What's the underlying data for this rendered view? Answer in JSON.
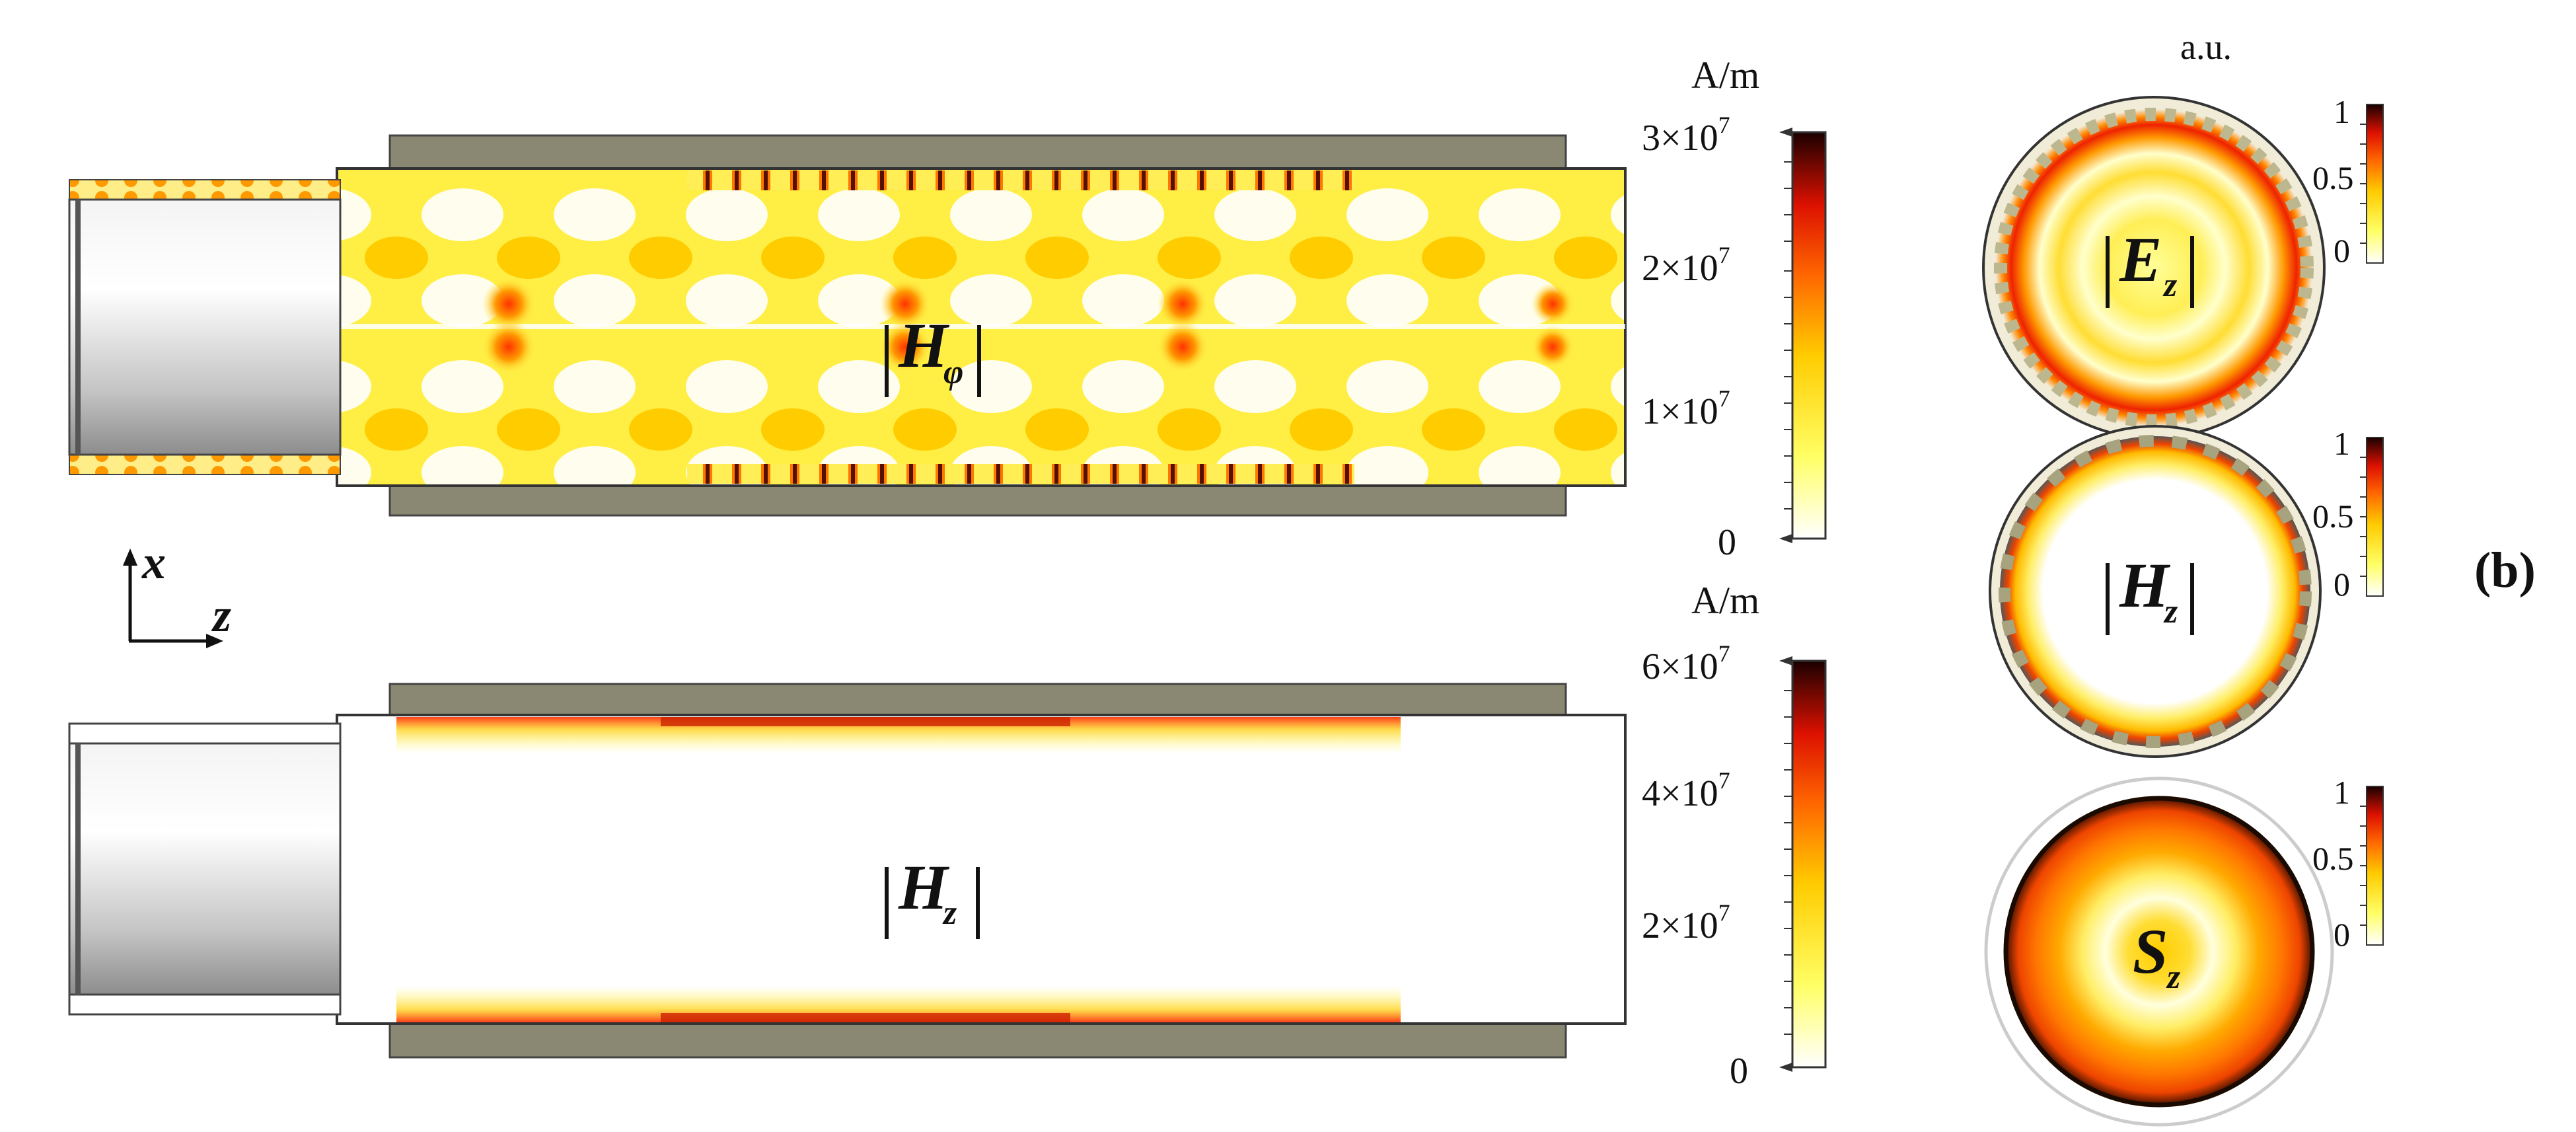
{
  "colors": {
    "field_low": "#ffff66",
    "field_mid": "#ffcc00",
    "field_high": "#ff2200",
    "field_max": "#1a0000",
    "metal": "#8a8772",
    "cathode": "#c8c8c8"
  },
  "top_panel": {
    "field_label_main": "H",
    "field_label_sub": "φ",
    "unit": "A/m",
    "colorbar_ticks": [
      {
        "mantissa": "3×10",
        "exp": "7"
      },
      {
        "mantissa": "2×10",
        "exp": "7"
      },
      {
        "mantissa": "1×10",
        "exp": "7"
      },
      {
        "mantissa": "0",
        "exp": ""
      }
    ]
  },
  "bottom_panel": {
    "field_label_main": "H",
    "field_label_sub": "z",
    "unit": "A/m",
    "colorbar_ticks": [
      {
        "mantissa": "6×10",
        "exp": "7"
      },
      {
        "mantissa": "4×10",
        "exp": "7"
      },
      {
        "mantissa": "2×10",
        "exp": "7"
      },
      {
        "mantissa": "0",
        "exp": ""
      }
    ]
  },
  "axes": {
    "x_label": "x",
    "z_label": "z"
  },
  "right_column": {
    "unit": "a.u.",
    "panel_label": "(b)",
    "circles": [
      {
        "label_main": "E",
        "label_sub": "z",
        "abs": true,
        "ticks": [
          "1",
          "0.5",
          "0"
        ]
      },
      {
        "label_main": "H",
        "label_sub": "z",
        "abs": true,
        "ticks": [
          "1",
          "0.5",
          "0"
        ]
      },
      {
        "label_main": "S",
        "label_sub": "z",
        "abs": false,
        "ticks": [
          "1",
          "0.5",
          "0"
        ]
      }
    ]
  }
}
